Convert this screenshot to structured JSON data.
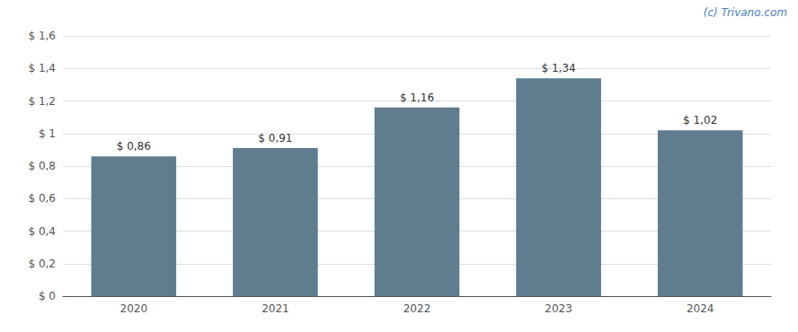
{
  "chart_data": {
    "type": "bar",
    "categories": [
      "2020",
      "2021",
      "2022",
      "2023",
      "2024"
    ],
    "values": [
      0.86,
      0.91,
      1.16,
      1.34,
      1.02
    ],
    "value_labels": [
      "$ 0,86",
      "$ 0,91",
      "$ 1,16",
      "$ 1,34",
      "$ 1,02"
    ],
    "data_labels": true,
    "color": "#5f7d8e",
    "ylim": [
      0,
      1.6
    ],
    "yticks": [
      {
        "value": 0,
        "label": "$ 0"
      },
      {
        "value": 0.2,
        "label": "$ 0,2"
      },
      {
        "value": 0.4,
        "label": "$ 0,4"
      },
      {
        "value": 0.6,
        "label": "$ 0,6"
      },
      {
        "value": 0.8,
        "label": "$ 0,8"
      },
      {
        "value": 1.0,
        "label": "$ 1"
      },
      {
        "value": 1.2,
        "label": "$ 1,2"
      },
      {
        "value": 1.4,
        "label": "$ 1,4"
      },
      {
        "value": 1.6,
        "label": "$ 1,6"
      }
    ],
    "grid": true,
    "annotations": [
      "(c) Trivano.com"
    ]
  }
}
